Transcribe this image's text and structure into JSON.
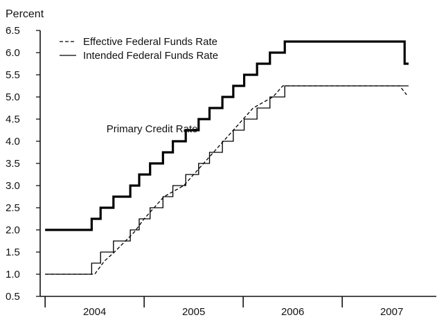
{
  "chart_data": {
    "type": "line",
    "ylabel": "Percent",
    "ylim": [
      0.5,
      6.5
    ],
    "yticks": [
      0.5,
      1.0,
      1.5,
      2.0,
      2.5,
      3.0,
      3.5,
      4.0,
      4.5,
      5.0,
      5.5,
      6.0,
      6.5
    ],
    "ytick_labels": [
      "0.5",
      "1.0",
      "1.5",
      "2.0",
      "2.5",
      "3.0",
      "3.5",
      "4.0",
      "4.5",
      "5.0",
      "5.5",
      "6.0",
      "6.5"
    ],
    "xlim": [
      2003.95,
      2007.95
    ],
    "x_year_labels": [
      "2004",
      "2005",
      "2006",
      "2007"
    ],
    "x_year_label_positions": [
      2004.5,
      2005.5,
      2006.5,
      2007.5
    ],
    "x_year_boundaries": [
      2004.0,
      2005.0,
      2006.0,
      2007.0
    ],
    "legend_position": "top-left",
    "grid": false,
    "series": [
      {
        "name": "Effective Federal Funds Rate",
        "style": "dashed",
        "x": [
          2004.0,
          2004.5,
          2004.6,
          2004.7,
          2004.9,
          2005.0,
          2005.1,
          2005.2,
          2005.4,
          2005.6,
          2005.9,
          2006.0,
          2006.1,
          2006.3,
          2006.4,
          2006.5,
          2007.0,
          2007.1,
          2007.58,
          2007.65
        ],
        "y": [
          1.0,
          1.0,
          1.3,
          1.5,
          1.95,
          2.25,
          2.5,
          2.75,
          3.0,
          3.5,
          4.25,
          4.5,
          4.75,
          5.0,
          5.25,
          5.25,
          5.25,
          5.25,
          5.25,
          5.05
        ]
      },
      {
        "name": "Intended Federal Funds Rate",
        "style": "solid",
        "steps": [
          [
            2004.0,
            2.0
          ],
          [
            2004.47,
            2.25
          ],
          [
            2004.56,
            2.5
          ],
          [
            2004.69,
            2.75
          ],
          [
            2004.86,
            3.0
          ],
          [
            2004.95,
            3.25
          ],
          [
            2005.06,
            3.5
          ],
          [
            2005.19,
            3.75
          ],
          [
            2005.29,
            4.0
          ],
          [
            2005.42,
            4.25
          ],
          [
            2005.55,
            4.5
          ],
          [
            2005.66,
            4.75
          ],
          [
            2005.79,
            5.0
          ],
          [
            2005.9,
            5.25
          ],
          [
            2006.01,
            5.5
          ],
          [
            2006.14,
            5.75
          ],
          [
            2006.27,
            6.0
          ],
          [
            2006.42,
            6.25
          ],
          [
            2007.63,
            5.75
          ]
        ],
        "end_x": 2007.67
      },
      {
        "name": "Primary Credit Rate",
        "style": "solid",
        "steps": [
          [
            2004.0,
            1.0
          ],
          [
            2004.47,
            1.25
          ],
          [
            2004.56,
            1.5
          ],
          [
            2004.69,
            1.75
          ],
          [
            2004.86,
            2.0
          ],
          [
            2004.95,
            2.25
          ],
          [
            2005.06,
            2.5
          ],
          [
            2005.19,
            2.75
          ],
          [
            2005.29,
            3.0
          ],
          [
            2005.42,
            3.25
          ],
          [
            2005.55,
            3.5
          ],
          [
            2005.66,
            3.75
          ],
          [
            2005.79,
            4.0
          ],
          [
            2005.9,
            4.25
          ],
          [
            2006.01,
            4.5
          ],
          [
            2006.14,
            4.75
          ],
          [
            2006.27,
            5.0
          ],
          [
            2006.42,
            5.25
          ]
        ],
        "end_x": 2007.67
      }
    ],
    "annotations": [
      {
        "text": "Primary Credit Rate",
        "x": 2004.62,
        "y": 4.2
      }
    ]
  }
}
